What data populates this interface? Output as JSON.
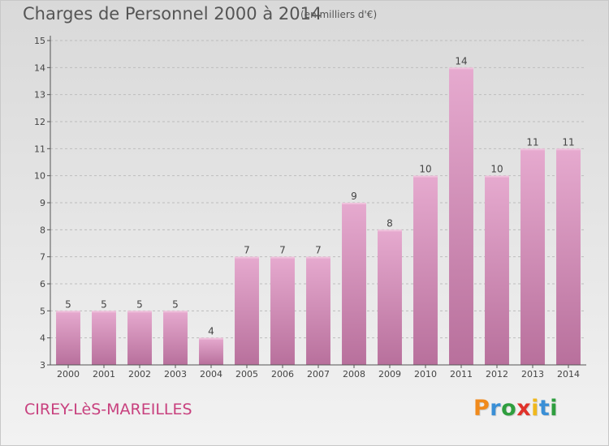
{
  "title": "Charges de Personnel 2000 à 2014",
  "subtitle": "(en milliers d'€)",
  "commune": "CIREY-LèS-MAREILLES",
  "logo": {
    "letters": [
      "P",
      "r",
      "o",
      "x",
      "i",
      "t",
      "i"
    ],
    "colors": [
      "#f08a1c",
      "#3a8fd6",
      "#2e9e3e",
      "#e0322a",
      "#f0b81c",
      "#3a8fd6",
      "#2e9e3e"
    ]
  },
  "colors": {
    "bar_top": "#e6aacf",
    "bar_bottom": "#b8709c",
    "bar_highlight": "#efc3dd",
    "commune": "#c8407e",
    "grid": "#bdbdbd"
  },
  "chart_data": {
    "type": "bar",
    "categories": [
      "2000",
      "2001",
      "2002",
      "2003",
      "2004",
      "2005",
      "2006",
      "2007",
      "2008",
      "2009",
      "2010",
      "2011",
      "2012",
      "2013",
      "2014"
    ],
    "values": [
      5,
      5,
      5,
      5,
      4,
      7,
      7,
      7,
      9,
      8,
      10,
      14,
      10,
      11,
      11
    ],
    "value_labels": [
      "5",
      "5",
      "5",
      "5",
      "4",
      "7",
      "7",
      "7",
      "9",
      "8",
      "10",
      "14",
      "10",
      "11",
      "11"
    ],
    "y_ticks": [
      "3",
      "4",
      "5",
      "6",
      "7",
      "8",
      "9",
      "10",
      "11",
      "12",
      "13",
      "14",
      "15"
    ],
    "ylim": [
      3,
      15
    ],
    "grid": true,
    "legend": "none"
  }
}
